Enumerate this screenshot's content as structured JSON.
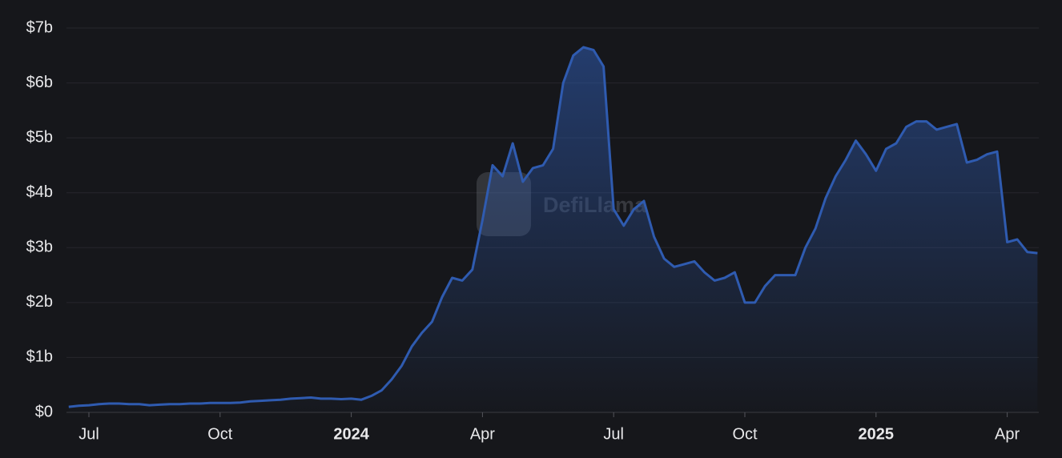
{
  "chart_data": {
    "type": "area",
    "watermark": "DefiLlama",
    "categories": [
      null,
      null,
      "Jul",
      null,
      null,
      null,
      null,
      null,
      null,
      null,
      null,
      null,
      null,
      null,
      null,
      "Oct",
      null,
      null,
      null,
      null,
      null,
      null,
      null,
      null,
      null,
      null,
      null,
      null,
      "2024",
      null,
      null,
      null,
      null,
      null,
      null,
      null,
      null,
      null,
      null,
      null,
      null,
      "Apr",
      null,
      null,
      null,
      null,
      null,
      null,
      null,
      null,
      null,
      null,
      null,
      null,
      "Jul",
      null,
      null,
      null,
      null,
      null,
      null,
      null,
      null,
      null,
      null,
      null,
      null,
      "Oct",
      null,
      null,
      null,
      null,
      null,
      null,
      null,
      null,
      null,
      null,
      null,
      null,
      "2025",
      null,
      null,
      null,
      null,
      null,
      null,
      null,
      null,
      null,
      null,
      null,
      null,
      "Apr",
      null,
      null,
      null
    ],
    "series": [
      {
        "color": "#2f5bb0",
        "values": [
          0.1,
          0.12,
          0.13,
          0.15,
          0.16,
          0.16,
          0.15,
          0.15,
          0.13,
          0.14,
          0.15,
          0.15,
          0.16,
          0.16,
          0.17,
          0.17,
          0.17,
          0.18,
          0.2,
          0.21,
          0.22,
          0.23,
          0.25,
          0.26,
          0.27,
          0.25,
          0.25,
          0.24,
          0.25,
          0.23,
          0.3,
          0.4,
          0.6,
          0.85,
          1.2,
          1.45,
          1.65,
          2.1,
          2.45,
          2.4,
          2.6,
          3.5,
          4.5,
          4.3,
          4.9,
          4.2,
          4.45,
          4.5,
          4.8,
          6.0,
          6.5,
          6.65,
          6.6,
          6.3,
          3.7,
          3.4,
          3.7,
          3.85,
          3.2,
          2.8,
          2.65,
          2.7,
          2.75,
          2.55,
          2.4,
          2.45,
          2.55,
          2.0,
          2.0,
          2.3,
          2.5,
          2.5,
          2.5,
          3.0,
          3.35,
          3.9,
          4.3,
          4.6,
          4.95,
          4.7,
          4.4,
          4.8,
          4.9,
          5.2,
          5.3,
          5.3,
          5.15,
          5.2,
          5.25,
          4.55,
          4.6,
          4.7,
          4.75,
          3.1,
          3.15,
          2.92,
          2.9
        ]
      }
    ],
    "ylim": [
      0,
      7
    ],
    "yticks": [
      {
        "value": 0,
        "label": "$0"
      },
      {
        "value": 1,
        "label": "$1b"
      },
      {
        "value": 2,
        "label": "$2b"
      },
      {
        "value": 3,
        "label": "$3b"
      },
      {
        "value": 4,
        "label": "$4b"
      },
      {
        "value": 5,
        "label": "$5b"
      },
      {
        "value": 6,
        "label": "$6b"
      },
      {
        "value": 7,
        "label": "$7b"
      }
    ],
    "grid": true
  }
}
